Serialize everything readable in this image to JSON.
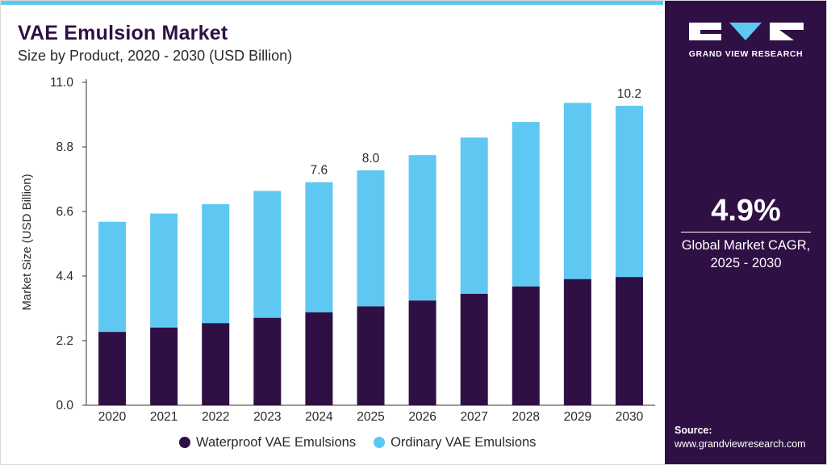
{
  "header": {
    "title": "VAE Emulsion Market",
    "subtitle": "Size by Product, 2020 - 2030 (USD Billion)"
  },
  "colors": {
    "waterproof": "#2f1045",
    "ordinary": "#5ec8f2",
    "panel": "#2f1045",
    "accent": "#5ec8f2"
  },
  "chart_data": {
    "type": "bar",
    "stacked": true,
    "categories": [
      "2020",
      "2021",
      "2022",
      "2023",
      "2024",
      "2025",
      "2026",
      "2027",
      "2028",
      "2029",
      "2030"
    ],
    "series": [
      {
        "name": "Waterproof VAE Emulsions",
        "color": "#2f1045",
        "values": [
          2.5,
          2.65,
          2.8,
          2.98,
          3.17,
          3.37,
          3.57,
          3.8,
          4.05,
          4.3,
          4.37
        ]
      },
      {
        "name": "Ordinary VAE Emulsions",
        "color": "#5ec8f2",
        "values": [
          3.75,
          3.88,
          4.05,
          4.32,
          4.43,
          4.63,
          4.95,
          5.32,
          5.6,
          6.0,
          5.83
        ]
      }
    ],
    "totals_labels": [
      "",
      "",
      "",
      "",
      "7.6",
      "8.0",
      "",
      "",
      "",
      "",
      "10.2"
    ],
    "ylabel": "Market Size (USD Billion)",
    "xlabel": "",
    "ylim": [
      0,
      11
    ],
    "yticks": [
      "0.0",
      "2.2",
      "4.4",
      "6.6",
      "8.8",
      "11.0"
    ],
    "grid": false,
    "legend_position": "bottom"
  },
  "side_panel": {
    "brand": "GRAND VIEW RESEARCH",
    "cagr_value": "4.9%",
    "cagr_label_line1": "Global Market CAGR,",
    "cagr_label_line2": "2025 - 2030",
    "source_label": "Source:",
    "source_url": "www.grandviewresearch.com"
  }
}
